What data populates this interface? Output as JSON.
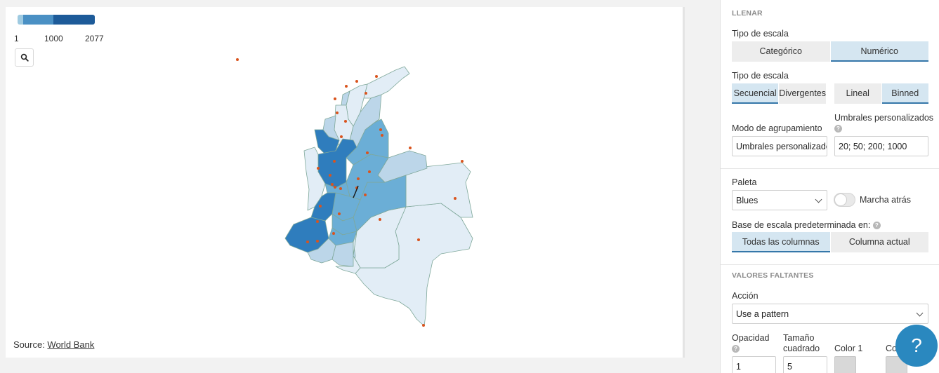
{
  "map": {
    "legend": {
      "colors": [
        "#9ecae1",
        "#4a90c4",
        "#1d5b99"
      ],
      "labels": [
        "1",
        "1000",
        "2077"
      ]
    },
    "zoom_icon": "search-icon",
    "source_prefix": "Source: ",
    "source_link": "World Bank",
    "region_colors": {
      "low": "#e2edf6",
      "mid_low": "#bcd6e9",
      "mid": "#6baed6",
      "high": "#2f7dbd",
      "border": "#7fa89a",
      "dot": "#d9541e"
    }
  },
  "panel": {
    "fill_title": "LLENAR",
    "scale_type_label": "Tipo de escala",
    "scale_type_options": [
      "Categórico",
      "Numérico"
    ],
    "scale_type_active": "Numérico",
    "scale_type2_label": "Tipo de escala",
    "seq_options": [
      "Secuencial",
      "Divergentes"
    ],
    "seq_active": "Secuencial",
    "lin_options": [
      "Lineal",
      "Binned"
    ],
    "lin_active": "Binned",
    "group_mode_label": "Modo de agrupamiento",
    "group_mode_value": "Umbrales personalizados",
    "thresholds_label": "Umbrales personalizados",
    "thresholds_value": "20; 50; 200; 1000",
    "palette_label": "Paleta",
    "palette_value": "Blues",
    "reverse_label": "Marcha atrás",
    "base_label": "Base de escala predeterminada en:",
    "base_options": [
      "Todas las columnas",
      "Columna actual"
    ],
    "base_active": "Todas las columnas",
    "missing_title": "VALORES FALTANTES",
    "action_label": "Acción",
    "action_value": "Use a pattern",
    "opacity_label": "Opacidad",
    "opacity_value": "1",
    "size_label_line1": "Tamaño",
    "size_label_line2": "cuadrado",
    "size_value": "5",
    "color1_label": "Color 1",
    "color2_label": "Co"
  },
  "help_button": "?"
}
